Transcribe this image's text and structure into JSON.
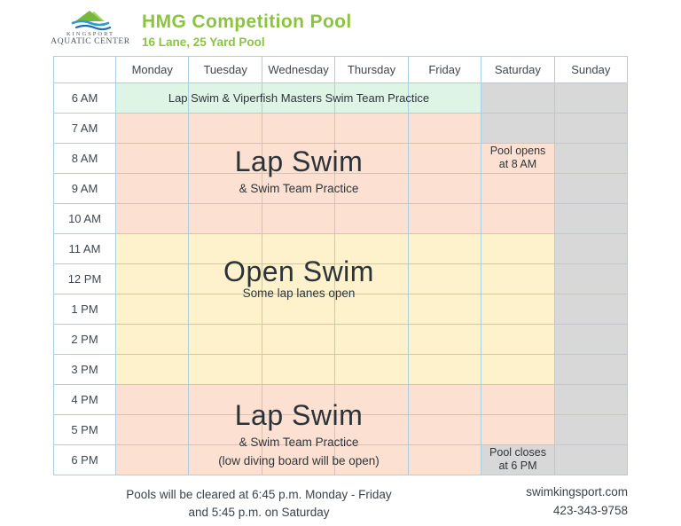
{
  "logo": {
    "line1": "KINGSPORT",
    "line2": "AQUATIC CENTER"
  },
  "header": {
    "title": "HMG Competition Pool",
    "subtitle": "16 Lane, 25 Yard Pool"
  },
  "colors": {
    "brand_green": "#8bc53f",
    "cell_green": "#def4e5",
    "cell_salmon": "#fce0d1",
    "cell_yellow": "#fdf2cc",
    "cell_gray": "#d8d8d8",
    "grid_line": "#a9cfe3",
    "text_dark": "#383f46"
  },
  "schedule": {
    "days": [
      "Monday",
      "Tuesday",
      "Wednesday",
      "Thursday",
      "Friday",
      "Saturday",
      "Sunday"
    ],
    "times": [
      "6 AM",
      "7 AM",
      "8 AM",
      "9 AM",
      "10 AM",
      "11 AM",
      "12 PM",
      "1 PM",
      "2 PM",
      "3 PM",
      "4 PM",
      "5 PM",
      "6 PM"
    ],
    "cell_colors": [
      [
        "green",
        "green",
        "green",
        "green",
        "green",
        "gray",
        "gray"
      ],
      [
        "salmon",
        "salmon",
        "salmon",
        "salmon",
        "salmon",
        "gray",
        "gray"
      ],
      [
        "salmon",
        "salmon",
        "salmon",
        "salmon",
        "salmon",
        "salmon",
        "gray"
      ],
      [
        "salmon",
        "salmon",
        "salmon",
        "salmon",
        "salmon",
        "salmon",
        "gray"
      ],
      [
        "salmon",
        "salmon",
        "salmon",
        "salmon",
        "salmon",
        "salmon",
        "gray"
      ],
      [
        "yellow",
        "yellow",
        "yellow",
        "yellow",
        "yellow",
        "yellow",
        "gray"
      ],
      [
        "yellow",
        "yellow",
        "yellow",
        "yellow",
        "yellow",
        "yellow",
        "gray"
      ],
      [
        "yellow",
        "yellow",
        "yellow",
        "yellow",
        "yellow",
        "yellow",
        "gray"
      ],
      [
        "yellow",
        "yellow",
        "yellow",
        "yellow",
        "yellow",
        "yellow",
        "gray"
      ],
      [
        "yellow",
        "yellow",
        "yellow",
        "yellow",
        "yellow",
        "yellow",
        "gray"
      ],
      [
        "salmon",
        "salmon",
        "salmon",
        "salmon",
        "salmon",
        "salmon",
        "gray"
      ],
      [
        "salmon",
        "salmon",
        "salmon",
        "salmon",
        "salmon",
        "salmon",
        "gray"
      ],
      [
        "salmon",
        "salmon",
        "salmon",
        "salmon",
        "salmon",
        "gray",
        "gray"
      ]
    ],
    "labels": {
      "early_morning": "Lap Swim & Viperfish Masters Swim Team Practice",
      "morning_title": "Lap Swim",
      "morning_sub": "& Swim Team Practice",
      "sat_open_line1": "Pool opens",
      "sat_open_line2": "at 8 AM",
      "midday_title": "Open Swim",
      "midday_sub": "Some lap lanes open",
      "evening_title": "Lap Swim",
      "evening_sub": "& Swim Team Practice",
      "evening_sub2": "(low diving board will be open)",
      "sat_close_line1": "Pool closes",
      "sat_close_line2": "at 6 PM"
    }
  },
  "footer": {
    "note_line1": "Pools will be cleared at 6:45 p.m. Monday - Friday",
    "note_line2": "and 5:45 p.m. on Saturday",
    "website": "swimkingsport.com",
    "phone": "423-343-9758"
  }
}
